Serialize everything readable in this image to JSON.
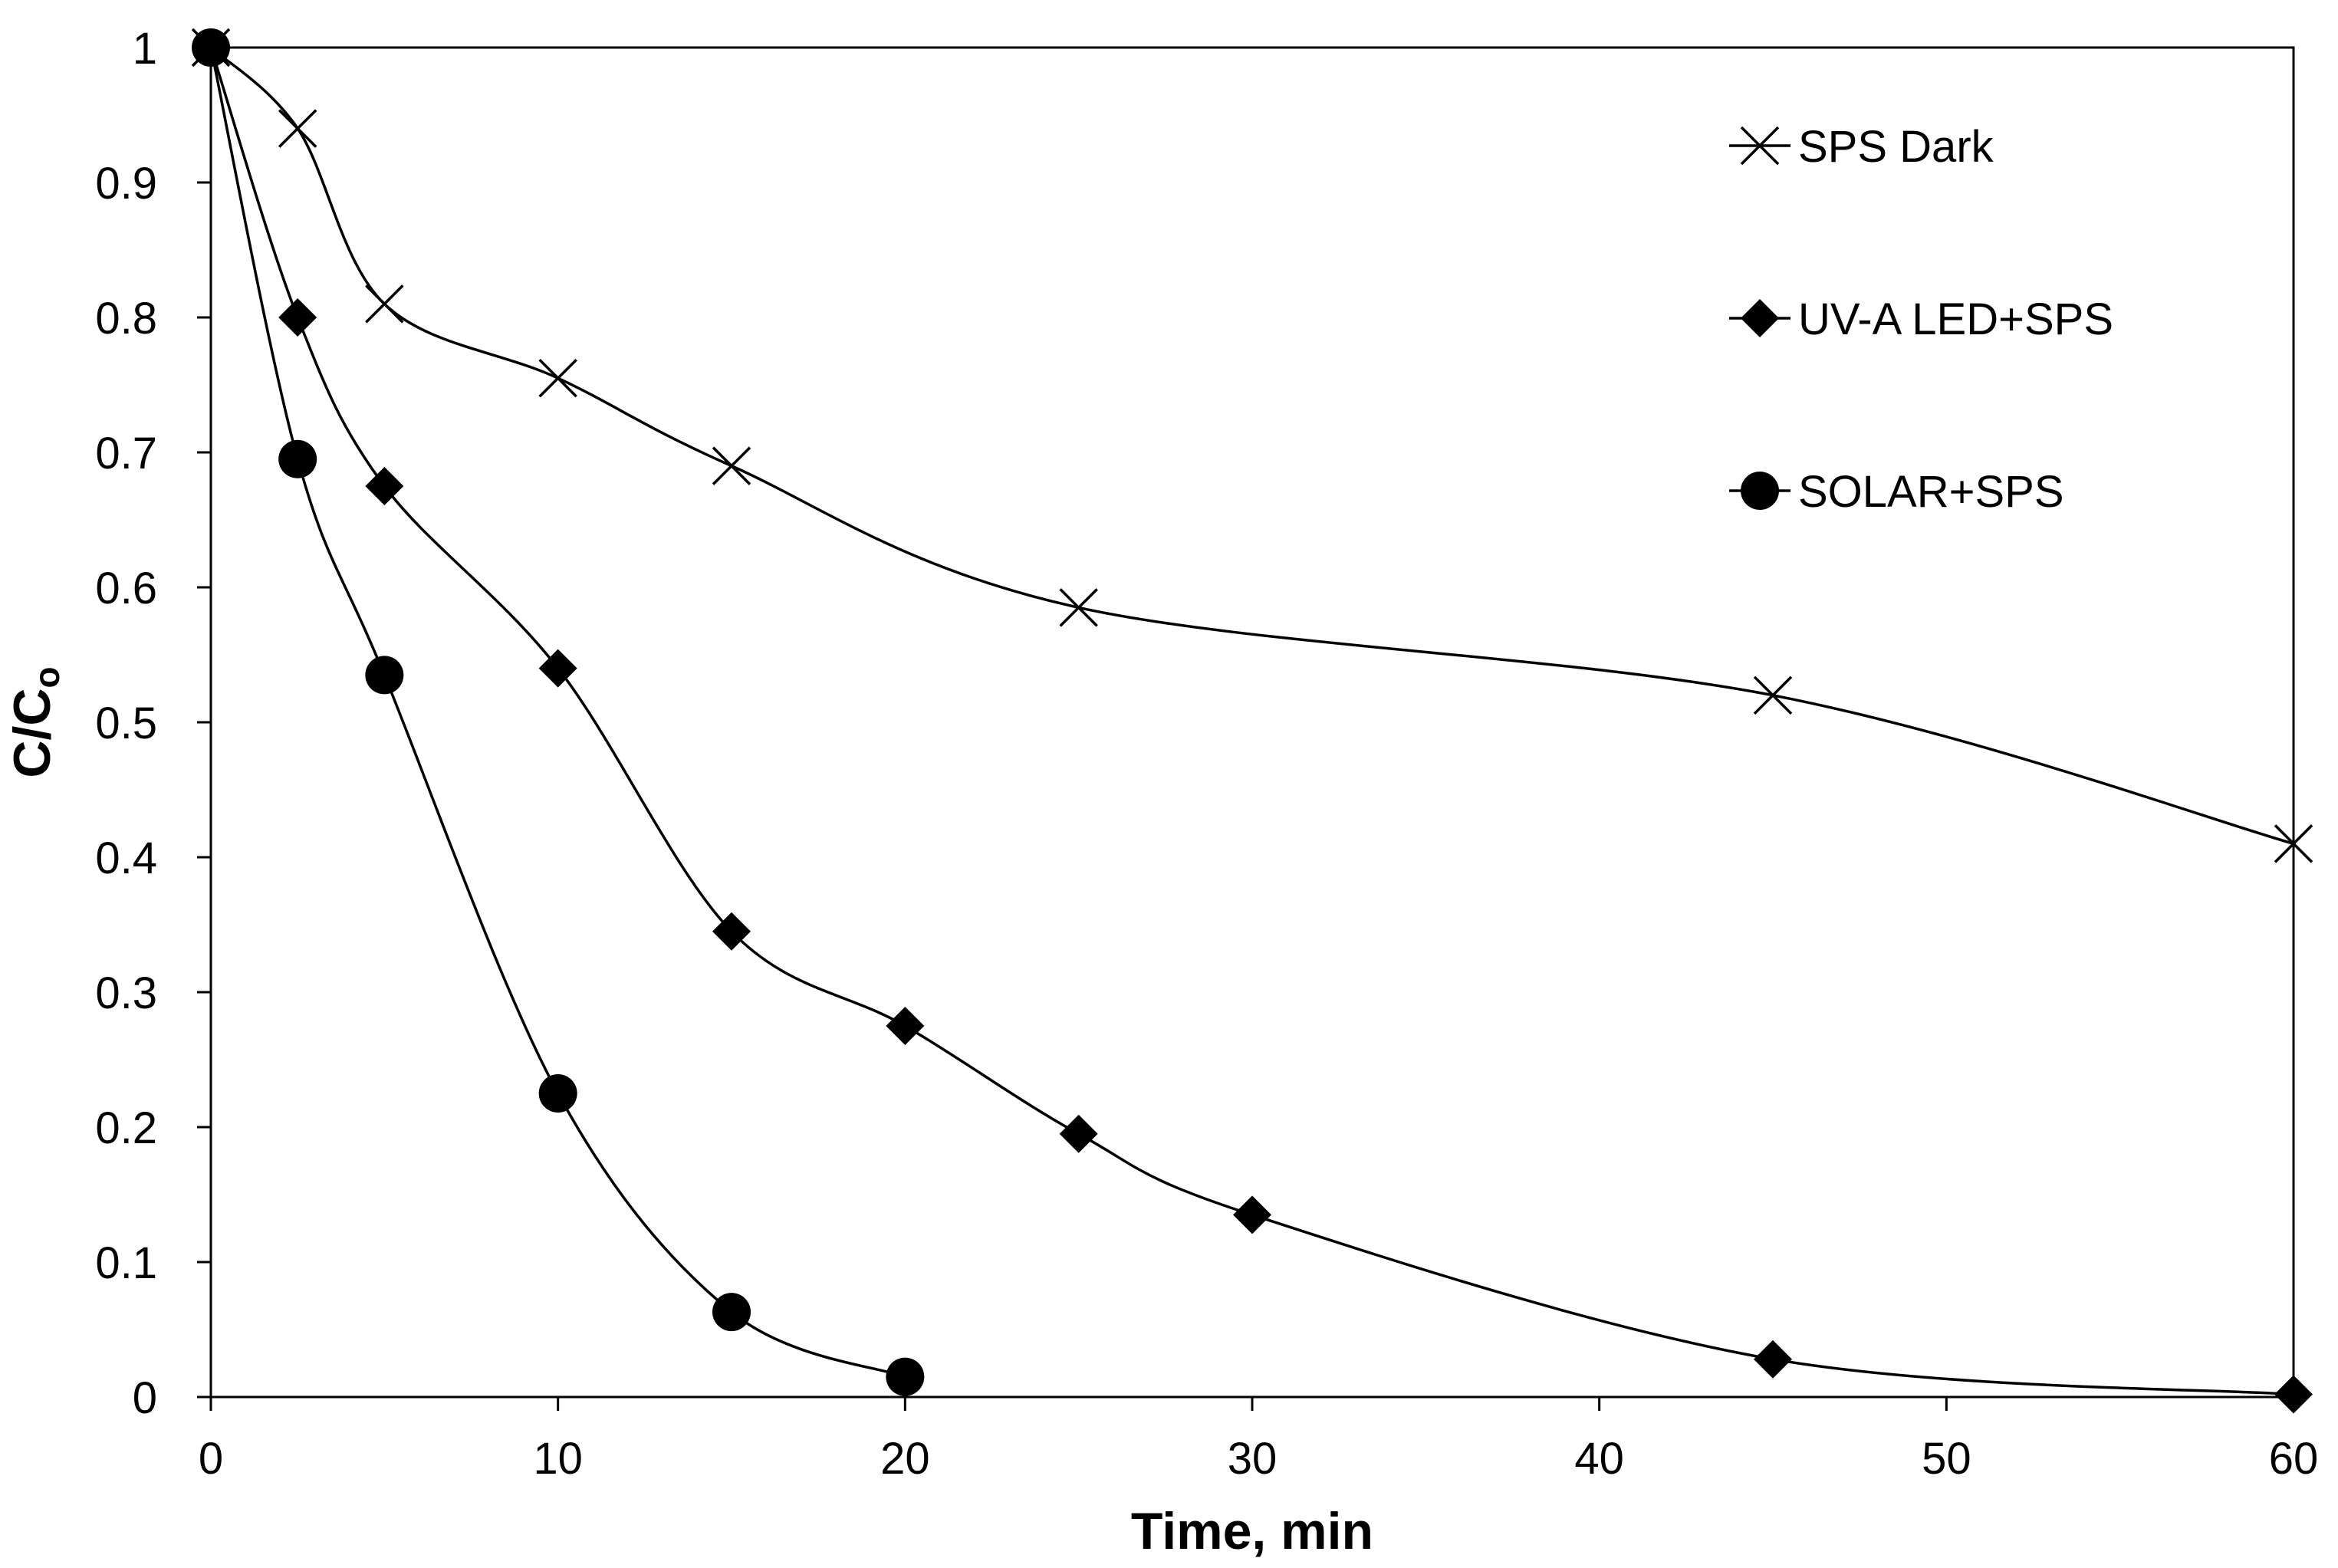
{
  "chart_data": {
    "type": "line",
    "title": "",
    "xlabel": "Time, min",
    "ylabel_main": "C/C",
    "ylabel_sub": "o",
    "xlim": [
      0,
      60
    ],
    "ylim": [
      0,
      1
    ],
    "x_ticks": [
      "0",
      "10",
      "20",
      "30",
      "40",
      "50",
      "60"
    ],
    "y_ticks": [
      "0",
      "0.1",
      "0.2",
      "0.3",
      "0.4",
      "0.5",
      "0.6",
      "0.7",
      "0.8",
      "0.9",
      "1"
    ],
    "grid": false,
    "legend_position": "top-right",
    "series": [
      {
        "name": "SPS Dark",
        "marker": "x",
        "x": [
          0,
          2.5,
          5,
          10,
          15,
          25,
          45,
          60
        ],
        "y": [
          1.0,
          0.94,
          0.81,
          0.755,
          0.69,
          0.585,
          0.52,
          0.41
        ]
      },
      {
        "name": "UV-A LED+SPS",
        "marker": "diamond",
        "x": [
          0,
          2.5,
          5,
          10,
          15,
          20,
          25,
          30,
          45,
          60
        ],
        "y": [
          1.0,
          0.8,
          0.675,
          0.54,
          0.345,
          0.275,
          0.195,
          0.135,
          0.028,
          0.002
        ]
      },
      {
        "name": "SOLAR+SPS",
        "marker": "circle",
        "x": [
          0,
          2.5,
          5,
          10,
          15,
          20
        ],
        "y": [
          1.0,
          0.695,
          0.535,
          0.225,
          0.063,
          0.015
        ]
      }
    ]
  }
}
